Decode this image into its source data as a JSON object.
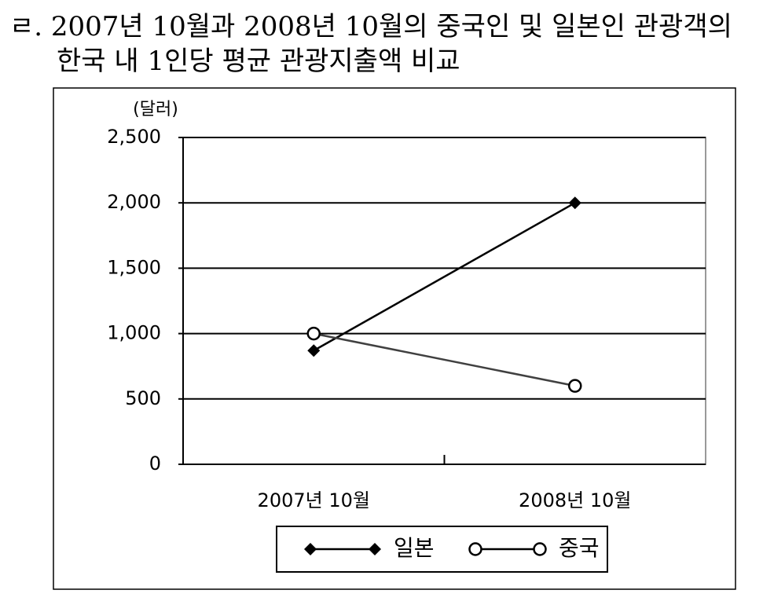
{
  "chart_data": {
    "type": "line",
    "title": [
      "ㄹ. 2007년 10월과 2008년 10월의 중국인 및 일본인 관광객의",
      "한국 내 1인당 평균 관광지출액 비교"
    ],
    "y_label": "(달러)",
    "categories": [
      "2007년 10월",
      "2008년 10월"
    ],
    "series": [
      {
        "name": "일본",
        "color": "#000000",
        "marker": "diamond",
        "values": [
          870,
          2000
        ]
      },
      {
        "name": "중국",
        "color": "#404040",
        "marker": "circle",
        "values": [
          1000,
          600
        ]
      }
    ],
    "ylim": [
      0,
      2500
    ],
    "yticks": [
      0,
      500,
      {
        "value": 1000,
        "label": "1,000"
      },
      {
        "value": 1500,
        "label": "1,500"
      },
      {
        "value": 2000,
        "label": "2,000"
      },
      {
        "value": 2500,
        "label": "2,500"
      }
    ],
    "grid": true,
    "legend": "bottom"
  }
}
